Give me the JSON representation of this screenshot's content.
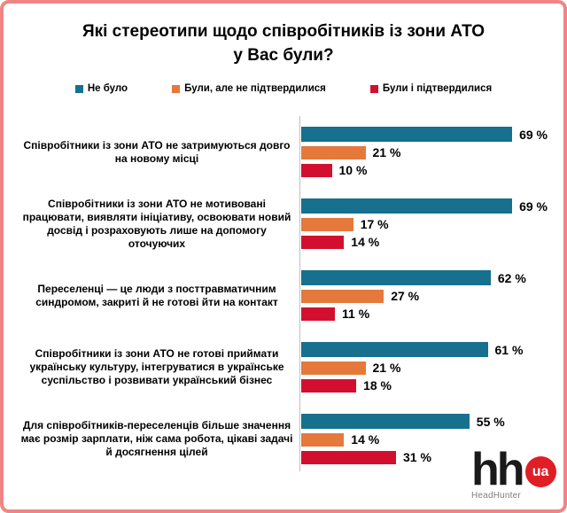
{
  "title": {
    "line1": "Які стереотипи щодо співробітників із зони АТО",
    "line2": "у Вас були?"
  },
  "chart_data": {
    "type": "bar",
    "orientation": "horizontal",
    "title": "Які стереотипи щодо співробітників із зони АТО у Вас були?",
    "legend_position": "top",
    "grid": false,
    "xlim": [
      0,
      100
    ],
    "value_suffix": " %",
    "categories": [
      "Співробітники із зони АТО не затримуються довго на новому місці",
      "Співробітники із зони АТО не мотивовані працювати, виявляти ініціативу, освоювати новий досвід і розраховують лише на допомогу оточуючих",
      "Переселенці — це люди з посттравматичним синдромом, закриті й не готові йти на контакт",
      "Співробітники із зони АТО не готові приймати українську культуру, інтегруватися в українське суспільство і розвивати український бізнес",
      "Для співробітників-переселенців більше значення має розмір зарплати, ніж сама робота, цікаві задачі й досягнення цілей"
    ],
    "series": [
      {
        "name": "Не було",
        "color": "#16708E",
        "values": [
          69,
          69,
          62,
          61,
          55
        ]
      },
      {
        "name": "Були, але не підтвердилися",
        "color": "#E5793C",
        "values": [
          21,
          17,
          27,
          21,
          14
        ]
      },
      {
        "name": "Були і підтвердилися",
        "color": "#D30F2F",
        "values": [
          10,
          14,
          11,
          18,
          31
        ]
      }
    ]
  },
  "colors": {
    "frame_border": "#F18585",
    "axis_line": "#BFBFBF",
    "logo_circle": "#E01E26"
  },
  "logo": {
    "hh": "hh",
    "ua": "ua",
    "caption": "HeadHunter"
  }
}
